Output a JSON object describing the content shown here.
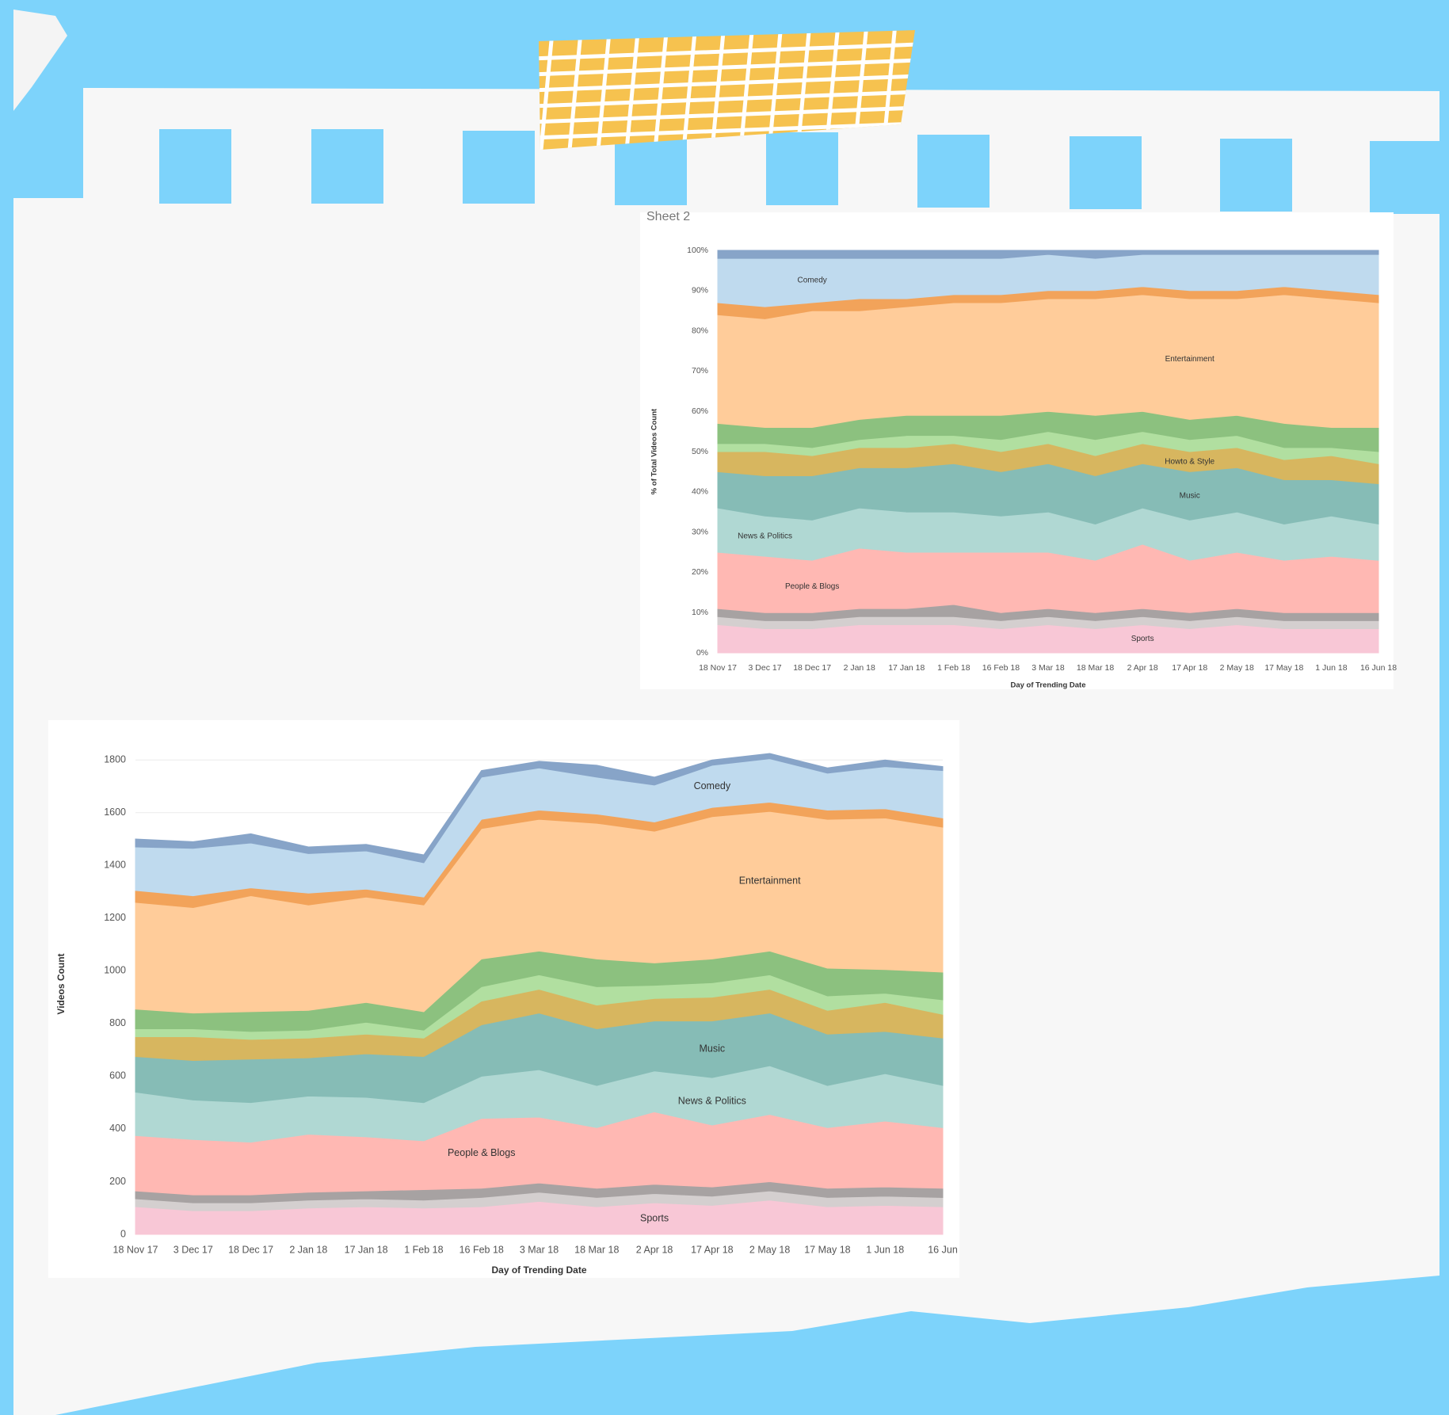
{
  "chart_data": [
    {
      "type": "area",
      "title": "Sheet 2",
      "stacked": true,
      "grid": true,
      "x": [
        "18 Nov 17",
        "3 Dec 17",
        "18 Dec 17",
        "2 Jan 18",
        "17 Jan 18",
        "1 Feb 18",
        "16 Feb 18",
        "3 Mar 18",
        "18 Mar 18",
        "2 Apr 18",
        "17 Apr 18",
        "2 May 18",
        "17 May 18",
        "1 Jun 18",
        "16 Jun 18"
      ],
      "xlabel": "Day of Trending Date",
      "ylabel": "% of Total Videos Count",
      "ylim": [
        0,
        100
      ],
      "yticks": [
        {
          "value": 0,
          "label": "0%"
        },
        {
          "value": 10,
          "label": "10%"
        },
        {
          "value": 20,
          "label": "20%"
        },
        {
          "value": 30,
          "label": "30%"
        },
        {
          "value": 40,
          "label": "40%"
        },
        {
          "value": 50,
          "label": "50%"
        },
        {
          "value": 60,
          "label": "60%"
        },
        {
          "value": 70,
          "label": "70%"
        },
        {
          "value": 80,
          "label": "80%"
        },
        {
          "value": 90,
          "label": "90%"
        },
        {
          "value": 100,
          "label": "100%"
        }
      ],
      "series": [
        {
          "name": "Sports",
          "color": "#f8c7d6",
          "values": [
            7,
            6,
            6,
            7,
            7,
            7,
            6,
            7,
            6,
            7,
            6,
            7,
            6,
            6,
            6
          ]
        },
        {
          "color": "#d4cfcf",
          "values": [
            2,
            2,
            2,
            2,
            2,
            2,
            2,
            2,
            2,
            2,
            2,
            2,
            2,
            2,
            2
          ]
        },
        {
          "color": "#a7a2a2",
          "values": [
            2,
            2,
            2,
            2,
            2,
            3,
            2,
            2,
            2,
            2,
            2,
            2,
            2,
            2,
            2
          ]
        },
        {
          "name": "People & Blogs",
          "color": "#ffb8b3",
          "values": [
            14,
            14,
            13,
            15,
            14,
            13,
            15,
            14,
            13,
            16,
            13,
            14,
            13,
            14,
            13
          ]
        },
        {
          "name": "News & Politics",
          "color": "#b0d8d3",
          "values": [
            11,
            10,
            10,
            10,
            10,
            10,
            9,
            10,
            9,
            9,
            10,
            10,
            9,
            10,
            9
          ]
        },
        {
          "name": "Music",
          "color": "#86bcb6",
          "values": [
            9,
            10,
            11,
            10,
            11,
            12,
            11,
            12,
            12,
            11,
            12,
            11,
            11,
            9,
            10
          ]
        },
        {
          "name": "Howto & Style",
          "color": "#d7b65f",
          "values": [
            5,
            6,
            5,
            5,
            5,
            5,
            5,
            5,
            5,
            5,
            5,
            5,
            5,
            6,
            5
          ]
        },
        {
          "color": "#b1dfa0",
          "values": [
            2,
            2,
            2,
            2,
            3,
            2,
            3,
            3,
            4,
            3,
            3,
            3,
            3,
            2,
            3
          ]
        },
        {
          "color": "#8cc17f",
          "values": [
            5,
            4,
            5,
            5,
            5,
            5,
            6,
            5,
            6,
            5,
            5,
            5,
            6,
            5,
            6
          ]
        },
        {
          "name": "Entertainment",
          "color": "#ffcc9a",
          "values": [
            27,
            27,
            29,
            27,
            27,
            28,
            28,
            28,
            29,
            29,
            30,
            29,
            32,
            32,
            31
          ]
        },
        {
          "color": "#f2a35a",
          "values": [
            3,
            3,
            2,
            3,
            2,
            2,
            2,
            2,
            2,
            2,
            2,
            2,
            2,
            2,
            2
          ]
        },
        {
          "name": "Comedy",
          "color": "#bfdaee",
          "values": [
            11,
            12,
            11,
            10,
            10,
            9,
            9,
            9,
            8,
            8,
            9,
            9,
            8,
            9,
            10
          ]
        },
        {
          "color": "#87a4c8",
          "values": [
            2,
            2,
            2,
            2,
            2,
            2,
            2,
            1,
            2,
            1,
            1,
            1,
            1,
            1,
            1
          ]
        }
      ]
    },
    {
      "type": "area",
      "stacked": true,
      "grid": true,
      "x": [
        "18 Nov 17",
        "3 Dec 17",
        "18 Dec 17",
        "2 Jan 18",
        "17 Jan 18",
        "1 Feb 18",
        "16 Feb 18",
        "3 Mar 18",
        "18 Mar 18",
        "2 Apr 18",
        "17 Apr 18",
        "2 May 18",
        "17 May 18",
        "1 Jun 18",
        "16 Jun"
      ],
      "xlabel": "Day of Trending Date",
      "ylabel": "Videos Count",
      "ylim": [
        0,
        1900
      ],
      "yticks": [
        0,
        200,
        400,
        600,
        800,
        1000,
        1200,
        1400,
        1600,
        1800
      ],
      "series": [
        {
          "name": "Sports",
          "color": "#f8c7d6",
          "values": [
            105,
            90,
            90,
            100,
            105,
            100,
            105,
            125,
            105,
            120,
            110,
            130,
            105,
            110,
            105
          ]
        },
        {
          "color": "#d4cfcf",
          "values": [
            30,
            30,
            30,
            30,
            30,
            30,
            35,
            35,
            35,
            35,
            35,
            35,
            35,
            35,
            35
          ]
        },
        {
          "color": "#a7a2a2",
          "values": [
            30,
            30,
            30,
            30,
            30,
            40,
            35,
            35,
            35,
            35,
            35,
            35,
            35,
            35,
            35
          ]
        },
        {
          "name": "People & Blogs",
          "color": "#ffb8b3",
          "values": [
            210,
            210,
            200,
            220,
            205,
            185,
            265,
            250,
            230,
            275,
            235,
            255,
            230,
            250,
            230
          ]
        },
        {
          "name": "News & Politics",
          "color": "#b0d8d3",
          "values": [
            165,
            150,
            150,
            145,
            150,
            145,
            160,
            180,
            160,
            155,
            180,
            185,
            160,
            180,
            160
          ]
        },
        {
          "name": "Music",
          "color": "#86bcb6",
          "values": [
            135,
            150,
            165,
            145,
            165,
            175,
            195,
            215,
            215,
            190,
            215,
            200,
            195,
            160,
            180
          ]
        },
        {
          "color": "#d7b65f",
          "values": [
            75,
            90,
            75,
            75,
            75,
            70,
            90,
            90,
            90,
            85,
            90,
            90,
            90,
            110,
            90
          ]
        },
        {
          "color": "#b1dfa0",
          "values": [
            30,
            30,
            30,
            30,
            45,
            30,
            55,
            55,
            70,
            50,
            55,
            55,
            55,
            35,
            55
          ]
        },
        {
          "color": "#8cc17f",
          "values": [
            75,
            60,
            75,
            75,
            75,
            70,
            105,
            90,
            105,
            85,
            90,
            90,
            105,
            90,
            105
          ]
        },
        {
          "name": "Entertainment",
          "color": "#ffcc9a",
          "values": [
            405,
            400,
            440,
            400,
            400,
            405,
            495,
            500,
            515,
            500,
            540,
            530,
            565,
            575,
            550
          ]
        },
        {
          "color": "#f2a35a",
          "values": [
            45,
            45,
            30,
            45,
            30,
            30,
            35,
            35,
            35,
            35,
            35,
            35,
            35,
            35,
            35
          ]
        },
        {
          "name": "Comedy",
          "color": "#bfdaee",
          "values": [
            165,
            180,
            170,
            150,
            145,
            130,
            160,
            160,
            140,
            140,
            160,
            165,
            140,
            160,
            180
          ]
        },
        {
          "color": "#87a4c8",
          "values": [
            30,
            25,
            35,
            25,
            25,
            30,
            25,
            25,
            45,
            30,
            20,
            20,
            20,
            25,
            15
          ]
        }
      ]
    }
  ]
}
